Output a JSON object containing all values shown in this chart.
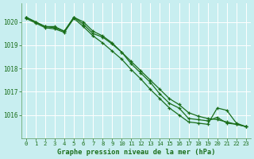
{
  "title": "Graphe pression niveau de la mer (hPa)",
  "bg_color": "#c8eef0",
  "grid_color": "#ffffff",
  "line_color": "#1a6e1a",
  "xlim": [
    -0.5,
    23.5
  ],
  "ylim": [
    1015.0,
    1020.8
  ],
  "yticks": [
    1016,
    1017,
    1018,
    1019,
    1020
  ],
  "xticks": [
    0,
    1,
    2,
    3,
    4,
    5,
    6,
    7,
    8,
    9,
    10,
    11,
    12,
    13,
    14,
    15,
    16,
    17,
    18,
    19,
    20,
    21,
    22,
    23
  ],
  "series": [
    [
      1020.2,
      1020.0,
      1019.8,
      1019.8,
      1019.6,
      1020.2,
      1019.9,
      1019.5,
      1019.35,
      1019.05,
      1018.7,
      1018.2,
      1017.8,
      1017.4,
      1016.9,
      1016.5,
      1016.3,
      1015.85,
      1015.8,
      1015.75,
      1015.9,
      1015.65,
      1015.6,
      1015.5
    ],
    [
      1020.15,
      1019.95,
      1019.75,
      1019.7,
      1019.55,
      1020.15,
      1019.8,
      1019.4,
      1019.1,
      1018.75,
      1018.4,
      1017.95,
      1017.55,
      1017.1,
      1016.7,
      1016.3,
      1016.0,
      1015.7,
      1015.65,
      1015.6,
      1016.3,
      1016.2,
      1015.65,
      1015.5
    ],
    [
      1020.2,
      1020.0,
      1019.8,
      1019.75,
      1019.6,
      1020.2,
      1020.0,
      1019.6,
      1019.4,
      1019.1,
      1018.7,
      1018.3,
      1017.9,
      1017.5,
      1017.1,
      1016.7,
      1016.45,
      1016.1,
      1015.95,
      1015.85,
      1015.8,
      1015.7,
      1015.6,
      1015.5
    ]
  ]
}
